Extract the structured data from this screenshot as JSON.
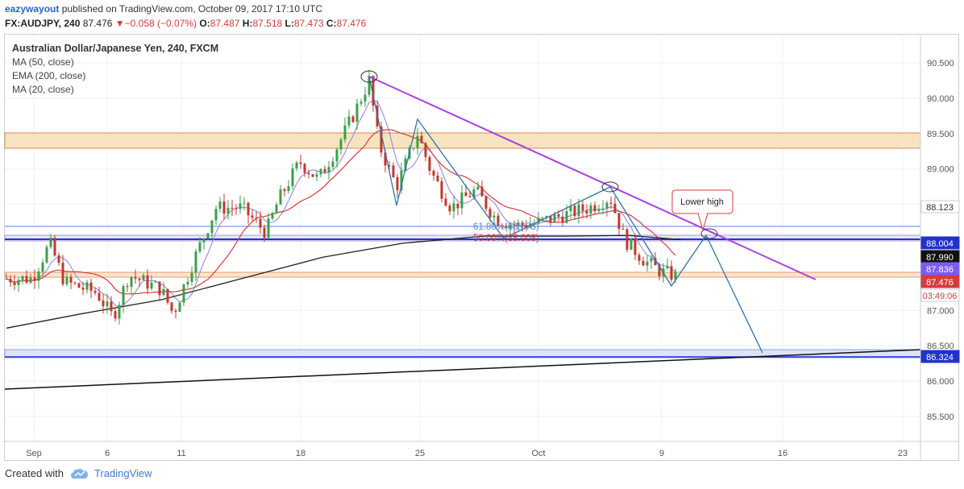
{
  "header": {
    "user": "eazywayout",
    "published": " published on TradingView.com, October 09, 2017 17:10 UTC",
    "symbol": "FX:AUDJPY, 240",
    "last": "87.476",
    "change": "−0.058 (−0.07%)",
    "o_label": "O:",
    "o_value": "87.487",
    "h_label": "H:",
    "h_value": "87.518",
    "l_label": "L:",
    "l_value": "87.473",
    "c_label": "C:",
    "c_value": "87.476"
  },
  "legend": {
    "title": "Australian Dollar/Japanese Yen, 240, FXCM",
    "ma50": "MA (50, close)",
    "ema200": "EMA (200, close)",
    "ma20": "MA (20, close)"
  },
  "footer": {
    "created_with": "Created with",
    "brand": "TradingView"
  },
  "colors": {
    "up": "#3d9e4a",
    "down": "#c0392b",
    "ma50": "#d63c3c",
    "ema200": "#222222",
    "ma20": "#8b7fe8",
    "trendline": "#a742e0",
    "pattern": "#2f72a8",
    "zone_fill": "#f7e3bf",
    "zone_border": "#d98a5a",
    "level_blue": "#2233cc"
  },
  "chart_data": {
    "type": "candlestick",
    "title": "Australian Dollar/Japanese Yen, 240, FXCM",
    "ylim": [
      85.1,
      90.9
    ],
    "y_ticks": [
      "90.500",
      "90.000",
      "89.500",
      "89.000",
      "88.500",
      "88.000",
      "87.500",
      "87.000",
      "86.500",
      "86.000",
      "85.500"
    ],
    "x_ticks": [
      "Sep",
      "6",
      "11",
      "18",
      "25",
      "Oct",
      "9",
      "16",
      "23"
    ],
    "price_labels": [
      {
        "text": "88.123",
        "color": "#ffffff",
        "bg": "#ffffff",
        "fg": "#333333"
      },
      {
        "text": "88.004",
        "bg": "#2233cc",
        "fg": "#ffffff"
      },
      {
        "text": "87.990",
        "bg": "#111111",
        "fg": "#ffffff"
      },
      {
        "text": "87.836",
        "bg": "#7b5cf0",
        "fg": "#ffffff"
      },
      {
        "text": "87.476",
        "bg": "#d63c3c",
        "fg": "#ffffff"
      },
      {
        "text": "03:49:06",
        "bg": "#ffffff",
        "fg": "#d63c3c"
      },
      {
        "text": "86.324",
        "bg": "#2233cc",
        "fg": "#ffffff"
      }
    ],
    "annotations": {
      "fib_618": "61.80%(88.075)",
      "fib_500": "50.00%(88.008)",
      "lower_high": "Lower high"
    },
    "levels": [
      88.123,
      88.004,
      86.324
    ],
    "zones": [
      [
        89.28,
        89.5
      ],
      [
        87.44,
        87.51
      ],
      [
        86.3,
        86.43
      ]
    ]
  }
}
